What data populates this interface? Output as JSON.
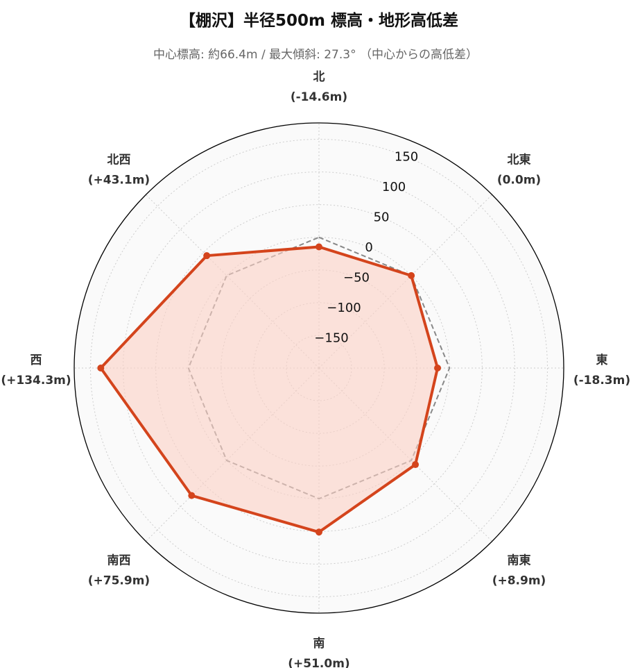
{
  "chart_data": {
    "type": "radar",
    "title": "【棚沢】半径500m 標高・地形高低差",
    "subtitle": "中心標高: 約66.4m / 最大傾斜: 27.3° （中心からの高低差）",
    "categories": [
      "北",
      "北東",
      "東",
      "南東",
      "南",
      "南西",
      "西",
      "北西"
    ],
    "category_labels": [
      "(-14.6m)",
      "(0.0m)",
      "(-18.3m)",
      "(+8.9m)",
      "(+51.0m)",
      "(+75.9m)",
      "(+134.3m)",
      "(+43.1m)"
    ],
    "series": [
      {
        "values": [
          -14.6,
          0.0,
          -18.3,
          8.9,
          51.0,
          75.9,
          134.3,
          43.1
        ],
        "color": "#d4441c",
        "fill": "#fbd0c4",
        "style": "solid"
      },
      {
        "values": [
          0,
          0,
          0,
          0,
          0,
          0,
          0,
          0
        ],
        "color": "#888888",
        "style": "dashed"
      }
    ],
    "r_ticks": [
      -150,
      -100,
      -50,
      0,
      50,
      100,
      150
    ],
    "r_tick_labels": [
      "−150",
      "−100",
      "−50",
      "0",
      "50",
      "100",
      "150"
    ],
    "rlim": [
      -200,
      175
    ],
    "grid": true
  }
}
